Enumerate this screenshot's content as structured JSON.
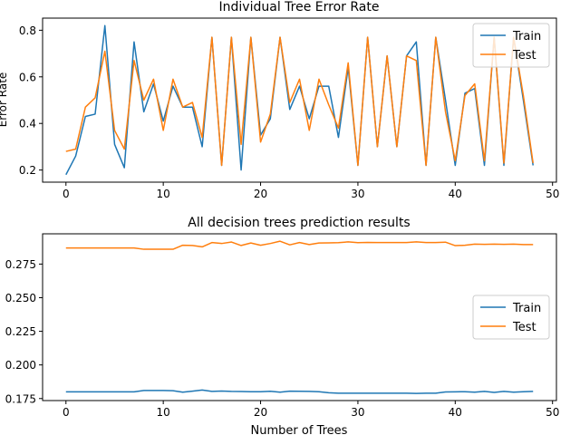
{
  "chart_data": [
    {
      "type": "line",
      "title": "Individual Tree Error Rate",
      "xlabel": "",
      "ylabel": "Error Rate",
      "xlim": [
        -2.4,
        50.4
      ],
      "ylim": [
        0.148,
        0.852
      ],
      "xticks": [
        0,
        10,
        20,
        30,
        40,
        50
      ],
      "yticks": [
        0.2,
        0.4,
        0.6,
        0.8
      ],
      "legend_position": "upper right",
      "x": [
        0,
        1,
        2,
        3,
        4,
        5,
        6,
        7,
        8,
        9,
        10,
        11,
        12,
        13,
        14,
        15,
        16,
        17,
        18,
        19,
        20,
        21,
        22,
        23,
        24,
        25,
        26,
        27,
        28,
        29,
        30,
        31,
        32,
        33,
        34,
        35,
        36,
        37,
        38,
        39,
        40,
        41,
        42,
        43,
        44,
        45,
        46,
        47,
        48
      ],
      "series": [
        {
          "name": "Train",
          "color": "#1f77b4",
          "values": [
            0.18,
            0.26,
            0.43,
            0.44,
            0.82,
            0.31,
            0.21,
            0.75,
            0.45,
            0.57,
            0.41,
            0.56,
            0.47,
            0.47,
            0.3,
            0.77,
            0.22,
            0.77,
            0.2,
            0.77,
            0.35,
            0.42,
            0.77,
            0.46,
            0.56,
            0.42,
            0.56,
            0.56,
            0.34,
            0.64,
            0.22,
            0.77,
            0.3,
            0.69,
            0.3,
            0.69,
            0.75,
            0.22,
            0.77,
            0.5,
            0.22,
            0.53,
            0.55,
            0.22,
            0.77,
            0.22,
            0.77,
            0.5,
            0.22
          ]
        },
        {
          "name": "Test",
          "color": "#ff7f0e",
          "values": [
            0.28,
            0.29,
            0.47,
            0.51,
            0.71,
            0.37,
            0.29,
            0.67,
            0.5,
            0.59,
            0.37,
            0.59,
            0.47,
            0.49,
            0.34,
            0.77,
            0.22,
            0.77,
            0.31,
            0.77,
            0.32,
            0.44,
            0.77,
            0.49,
            0.59,
            0.37,
            0.59,
            0.48,
            0.38,
            0.66,
            0.22,
            0.77,
            0.3,
            0.69,
            0.3,
            0.69,
            0.67,
            0.22,
            0.77,
            0.45,
            0.24,
            0.52,
            0.57,
            0.24,
            0.77,
            0.23,
            0.77,
            0.52,
            0.23
          ]
        }
      ]
    },
    {
      "type": "line",
      "title": "All decision trees prediction results",
      "xlabel": "Number of Trees",
      "ylabel": "",
      "xlim": [
        -2.4,
        50.4
      ],
      "ylim": [
        0.1735,
        0.2975
      ],
      "xticks": [
        0,
        10,
        20,
        30,
        40,
        50
      ],
      "yticks": [
        0.175,
        0.2,
        0.225,
        0.25,
        0.275
      ],
      "legend_position": "center right",
      "x": [
        0,
        1,
        2,
        3,
        4,
        5,
        6,
        7,
        8,
        9,
        10,
        11,
        12,
        13,
        14,
        15,
        16,
        17,
        18,
        19,
        20,
        21,
        22,
        23,
        24,
        25,
        26,
        27,
        28,
        29,
        30,
        31,
        32,
        33,
        34,
        35,
        36,
        37,
        38,
        39,
        40,
        41,
        42,
        43,
        44,
        45,
        46,
        47,
        48
      ],
      "series": [
        {
          "name": "Train",
          "color": "#1f77b4",
          "values": [
            0.18,
            0.18,
            0.18,
            0.18,
            0.18,
            0.18,
            0.18,
            0.18,
            0.181,
            0.181,
            0.181,
            0.1808,
            0.1797,
            0.1805,
            0.1813,
            0.1803,
            0.1806,
            0.1803,
            0.1802,
            0.1801,
            0.1801,
            0.1804,
            0.1797,
            0.1805,
            0.1804,
            0.1803,
            0.1801,
            0.1793,
            0.179,
            0.179,
            0.179,
            0.179,
            0.179,
            0.179,
            0.179,
            0.179,
            0.1788,
            0.179,
            0.179,
            0.1799,
            0.18,
            0.1801,
            0.1797,
            0.1803,
            0.1796,
            0.1803,
            0.1797,
            0.1801,
            0.1803
          ]
        },
        {
          "name": "Test",
          "color": "#ff7f0e",
          "values": [
            0.287,
            0.287,
            0.287,
            0.287,
            0.287,
            0.287,
            0.287,
            0.287,
            0.286,
            0.286,
            0.286,
            0.286,
            0.289,
            0.2888,
            0.2878,
            0.291,
            0.2903,
            0.2914,
            0.2888,
            0.2907,
            0.289,
            0.2903,
            0.292,
            0.2893,
            0.291,
            0.2895,
            0.2907,
            0.2908,
            0.2909,
            0.2915,
            0.2909,
            0.2911,
            0.291,
            0.291,
            0.291,
            0.291,
            0.2915,
            0.291,
            0.291,
            0.2913,
            0.2887,
            0.289,
            0.2898,
            0.2897,
            0.2898,
            0.2897,
            0.2898,
            0.2895,
            0.2895
          ]
        }
      ]
    }
  ]
}
